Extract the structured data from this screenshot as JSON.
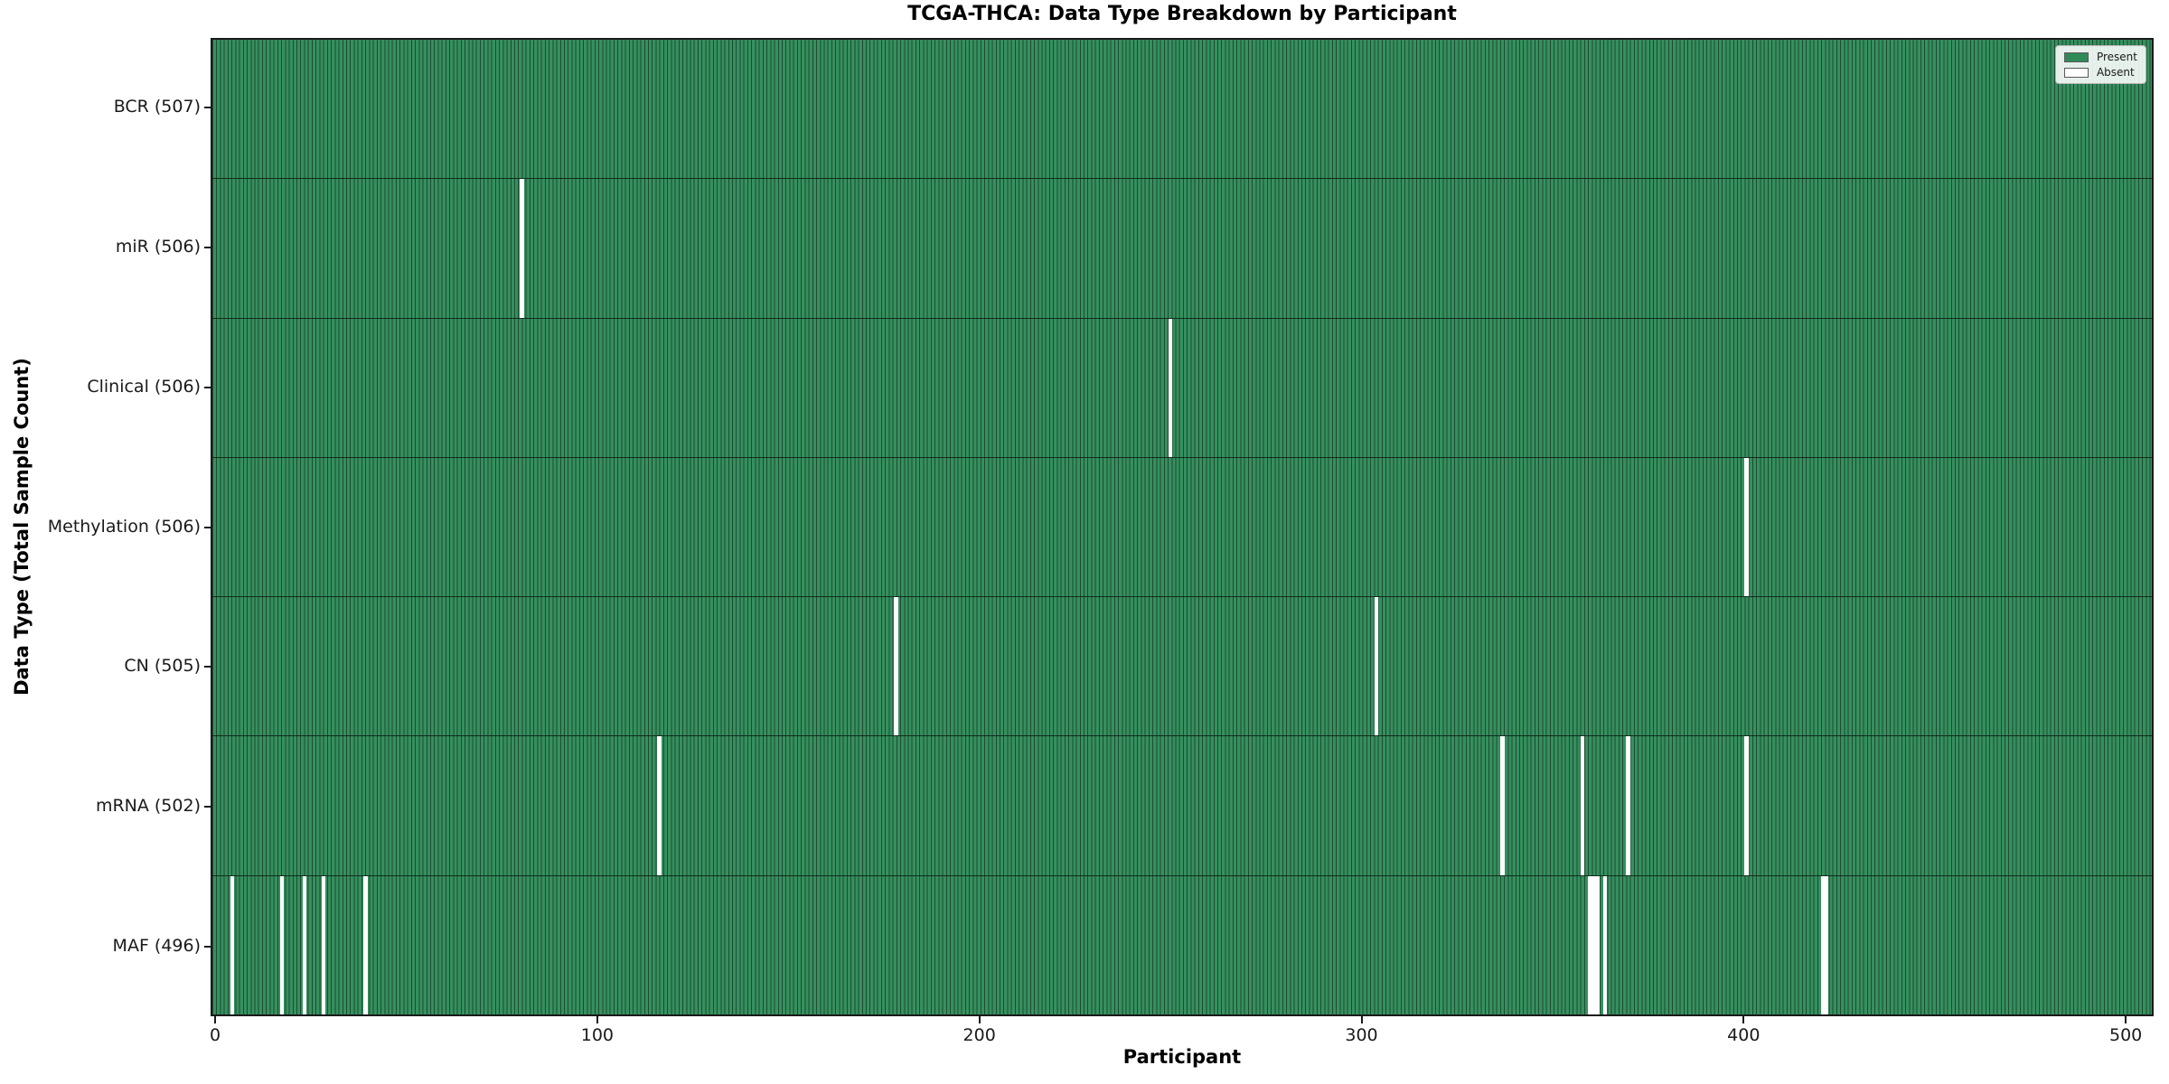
{
  "title": "TCGA-THCA: Data Type Breakdown by Participant",
  "axes": {
    "xlabel": "Participant",
    "ylabel": "Data Type (Total Sample Count)"
  },
  "legend": {
    "present_label": "Present",
    "absent_label": "Absent"
  },
  "colors": {
    "present_fill": "#35905e",
    "present_legend": "#2e8b57",
    "bar_edge": "#1f4a33",
    "absent": "#ffffff",
    "row_divider": "#0a1e12",
    "axis": "#1a1a1a"
  },
  "chart_data": {
    "type": "heatmap",
    "title": "TCGA-THCA: Data Type Breakdown by Participant",
    "xlabel": "Participant",
    "ylabel": "Data Type (Total Sample Count)",
    "total_participants": 507,
    "xlim": [
      -1.2,
      507.3
    ],
    "x_ticks": [
      0,
      100,
      200,
      300,
      400,
      500
    ],
    "grid": false,
    "legend_entries": [
      "Present",
      "Absent"
    ],
    "legend_position": "upper right",
    "rows": [
      {
        "label": "BCR (507)",
        "data_type": "BCR",
        "present_count": 507,
        "absent_participants": []
      },
      {
        "label": "miR (506)",
        "data_type": "miR",
        "present_count": 506,
        "absent_participants": [
          80
        ]
      },
      {
        "label": "Clinical (506)",
        "data_type": "Clinical",
        "present_count": 506,
        "absent_participants": [
          250
        ]
      },
      {
        "label": "Methylation (506)",
        "data_type": "Methylation",
        "present_count": 506,
        "absent_participants": [
          401
        ]
      },
      {
        "label": "CN (505)",
        "data_type": "CN",
        "present_count": 505,
        "absent_participants": [
          178,
          304
        ]
      },
      {
        "label": "mRNA (502)",
        "data_type": "mRNA",
        "present_count": 502,
        "absent_participants": [
          116,
          337,
          358,
          370,
          401
        ]
      },
      {
        "label": "MAF (496)",
        "data_type": "MAF",
        "present_count": 496,
        "absent_participants": [
          4,
          17,
          23,
          28,
          39,
          360,
          361,
          362,
          364,
          421,
          422
        ]
      }
    ]
  }
}
